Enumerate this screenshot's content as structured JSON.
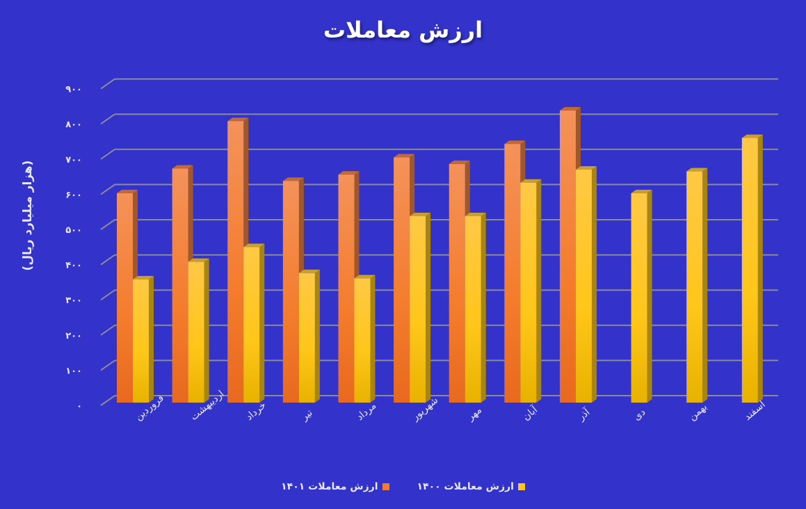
{
  "chart_data": {
    "type": "bar",
    "title": "ارزش معاملات",
    "xlabel": "",
    "ylabel": "(هزار میلیارد ریال)",
    "ylim": [
      0,
      900
    ],
    "yticks": [
      "۰",
      "۱۰۰",
      "۲۰۰",
      "۳۰۰",
      "۴۰۰",
      "۵۰۰",
      "۶۰۰",
      "۷۰۰",
      "۸۰۰",
      "۹۰۰"
    ],
    "grid": true,
    "legend_position": "bottom",
    "categories": [
      "فروردین",
      "اردیبهشت",
      "خرداد",
      "تیر",
      "مرداد",
      "شهریور",
      "مهر",
      "آبان",
      "آذر",
      "دی",
      "بهمن",
      "اسفند"
    ],
    "series": [
      {
        "name": "ارزش معاملات ۱۴۰۱",
        "color": "#f47c2c",
        "values": [
          595,
          665,
          800,
          630,
          648,
          697,
          678,
          735,
          830,
          null,
          null,
          null
        ]
      },
      {
        "name": "ارزش معاملات ۱۴۰۰",
        "color": "#ffc61a",
        "values": [
          350,
          400,
          442,
          368,
          353,
          530,
          530,
          625,
          662,
          595,
          657,
          752
        ]
      }
    ]
  },
  "title": "ارزش معاملات",
  "ylabel": "(هزار میلیارد ریال)",
  "legend": [
    {
      "label": "ارزش معاملات ۱۴۰۰",
      "color": "#ffc61a"
    },
    {
      "label": "ارزش معاملات ۱۴۰۱",
      "color": "#f47c2c"
    }
  ]
}
